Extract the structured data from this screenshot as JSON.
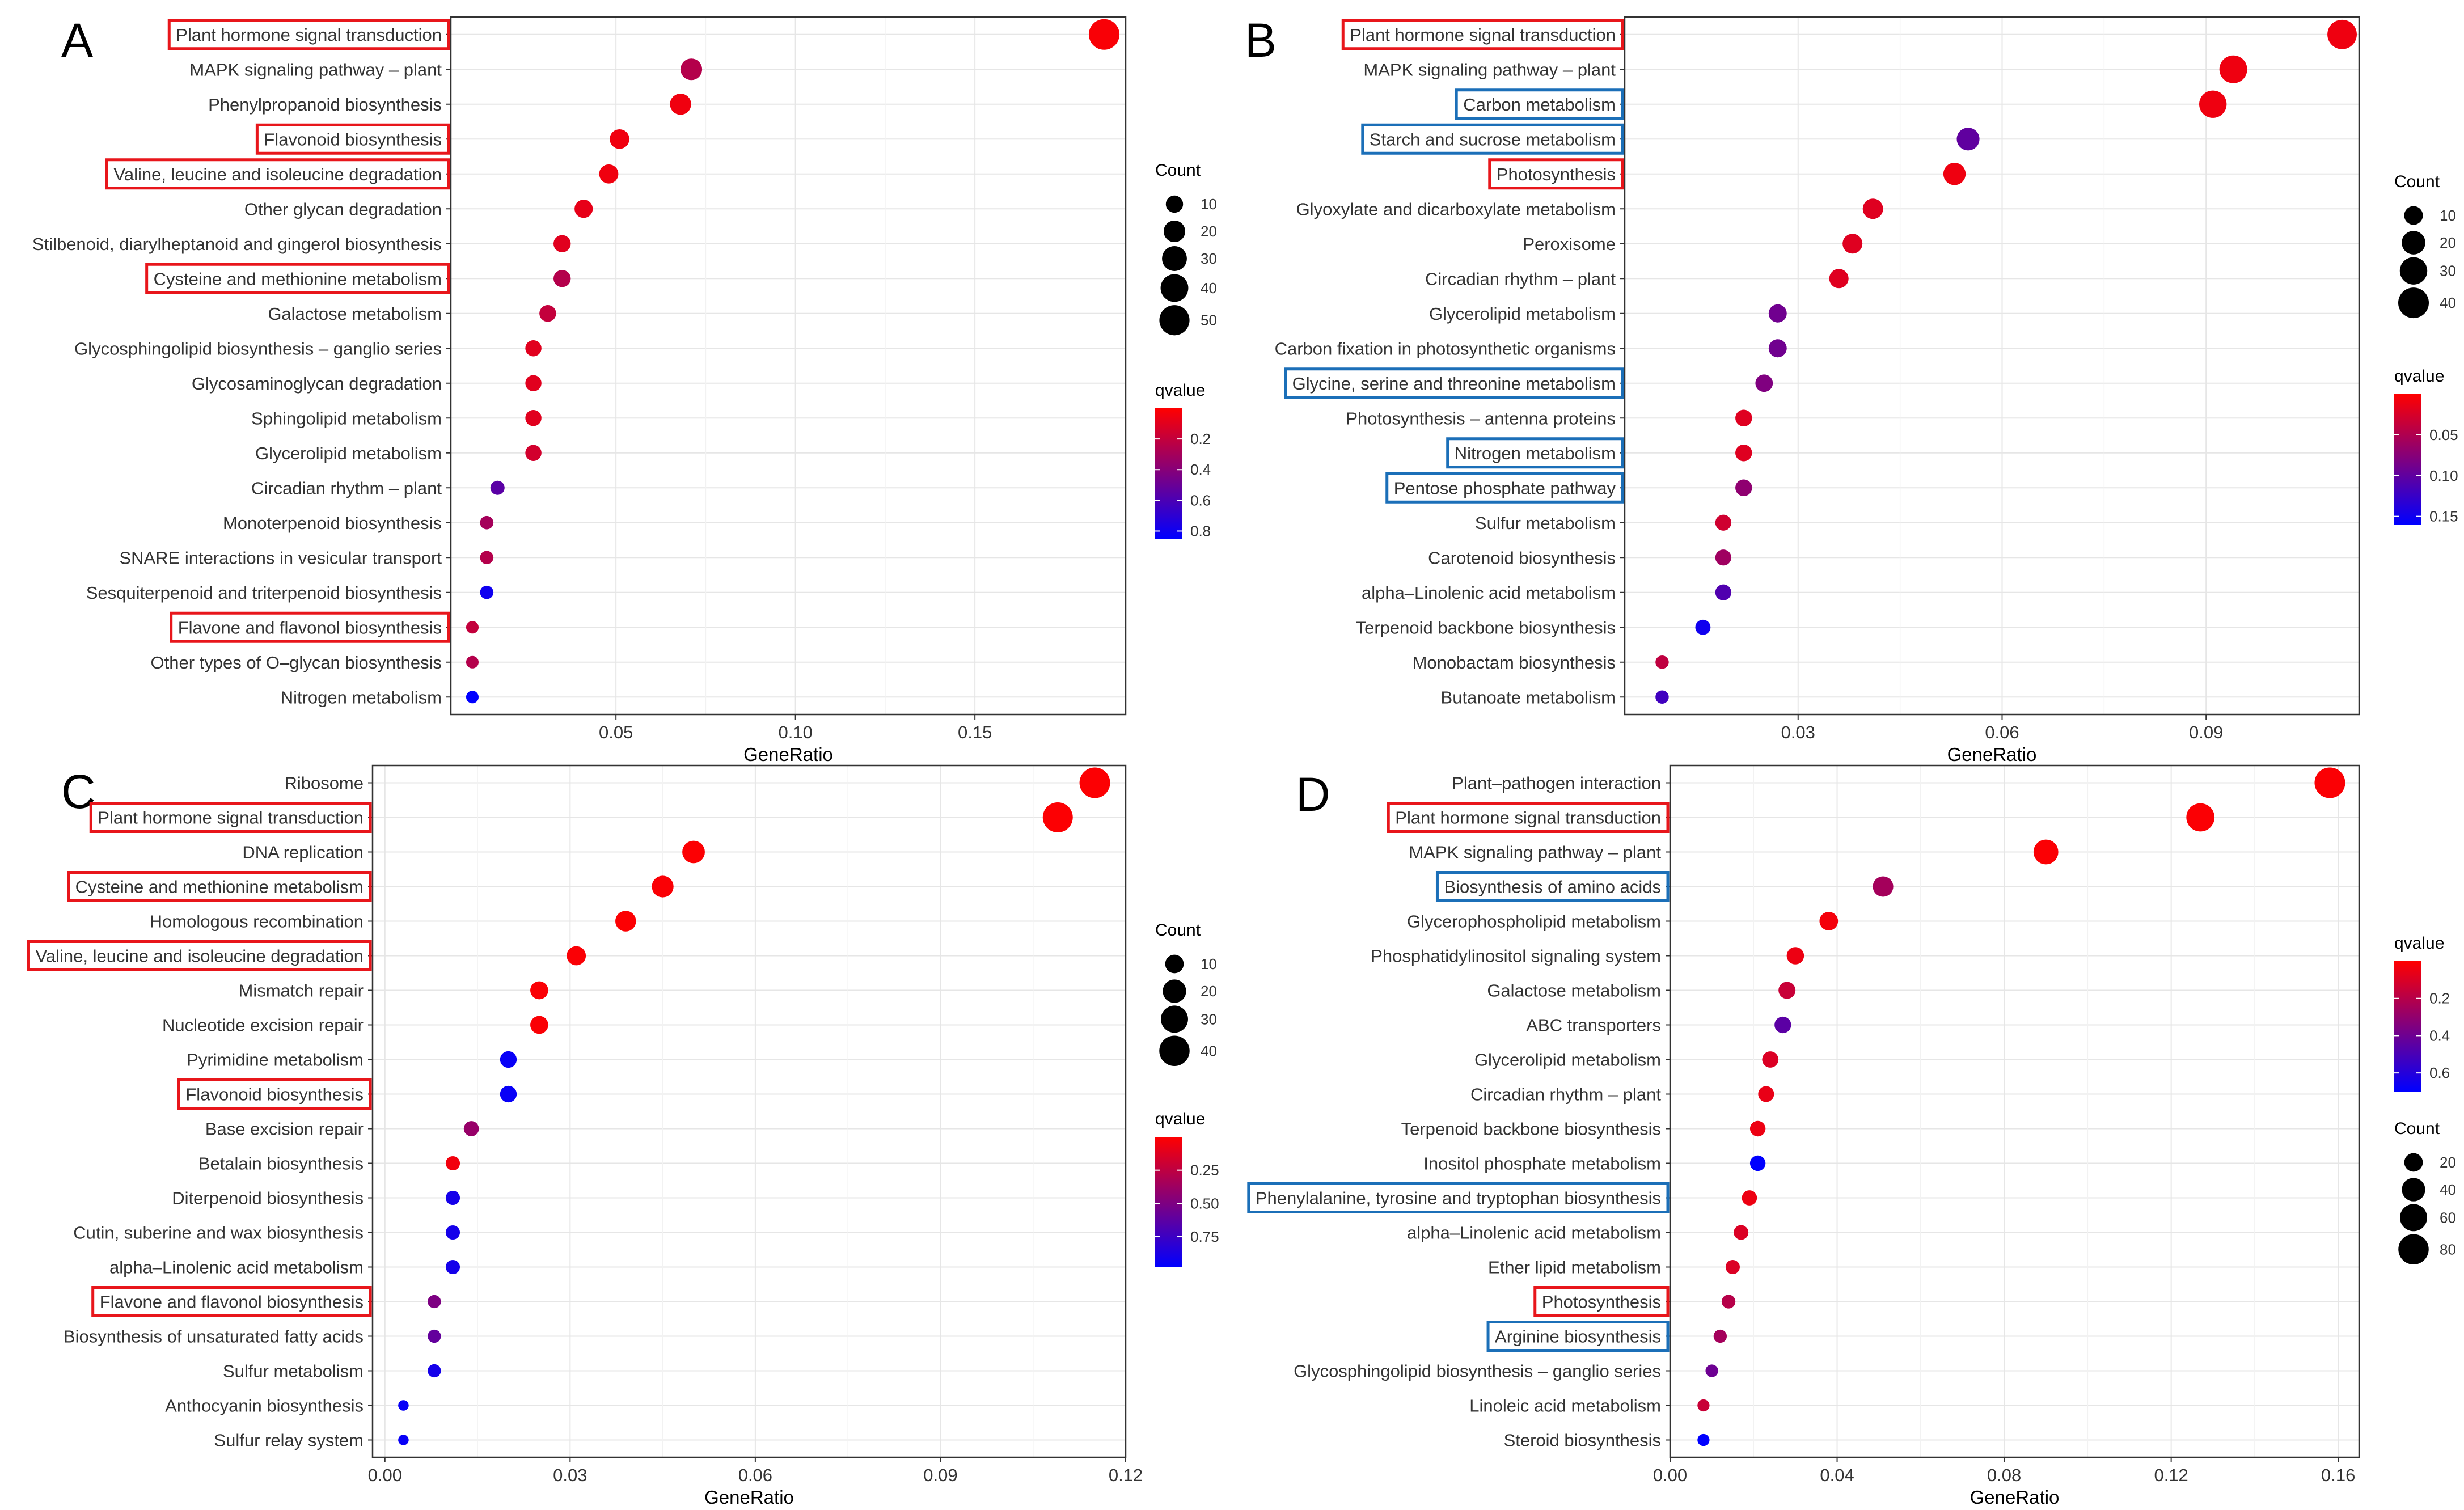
{
  "figure": {
    "x_axis_title": "GeneRatio"
  },
  "chart_data": [
    {
      "type": "scatter",
      "panel_label": "A",
      "title": "",
      "xlabel": "GeneRatio",
      "ylabel": "",
      "xlim": [
        0.004,
        0.192
      ],
      "xticks": [
        0.05,
        0.1,
        0.15
      ],
      "xtick_labels": [
        "0.05",
        "0.10",
        "0.15"
      ],
      "categories": [
        "Plant hormone signal transduction",
        "MAPK signaling pathway – plant",
        "Phenylpropanoid biosynthesis",
        "Flavonoid biosynthesis",
        "Valine, leucine and isoleucine degradation",
        "Other glycan degradation",
        "Stilbenoid, diarylheptanoid and gingerol biosynthesis",
        "Cysteine and methionine metabolism",
        "Galactose metabolism",
        "Glycosphingolipid biosynthesis – ganglio series",
        "Glycosaminoglycan degradation",
        "Sphingolipid metabolism",
        "Glycerolipid metabolism",
        "Circadian rhythm – plant",
        "Monoterpenoid biosynthesis",
        "SNARE interactions in vesicular transport",
        "Sesquiterpenoid and triterpenoid biosynthesis",
        "Flavone and flavonol biosynthesis",
        "Other types of O–glycan biosynthesis",
        "Nitrogen metabolism"
      ],
      "gene_ratio": [
        0.186,
        0.071,
        0.068,
        0.051,
        0.048,
        0.041,
        0.035,
        0.035,
        0.031,
        0.027,
        0.027,
        0.027,
        0.027,
        0.017,
        0.014,
        0.014,
        0.014,
        0.01,
        0.01,
        0.01
      ],
      "count": [
        52,
        20,
        19,
        15,
        14,
        12,
        10,
        10,
        9,
        8,
        8,
        8,
        8,
        5,
        4,
        4,
        4,
        3,
        3,
        3
      ],
      "qvalue": [
        0.02,
        0.25,
        0.05,
        0.05,
        0.05,
        0.08,
        0.1,
        0.25,
        0.2,
        0.1,
        0.1,
        0.1,
        0.15,
        0.55,
        0.3,
        0.25,
        0.8,
        0.2,
        0.25,
        0.85
      ],
      "highlight": [
        "red",
        "",
        "",
        "red",
        "red",
        "",
        "",
        "red",
        "",
        "",
        "",
        "",
        "",
        "",
        "",
        "",
        "",
        "red",
        "",
        ""
      ],
      "size_legend": {
        "title": "Count",
        "values": [
          10,
          20,
          30,
          40,
          50
        ],
        "labels": [
          "10",
          "20",
          "30",
          "40",
          "50"
        ]
      },
      "color_legend": {
        "title": "qvalue",
        "range": [
          0.0,
          0.85
        ],
        "ticks": [
          0.2,
          0.4,
          0.6,
          0.8
        ],
        "labels": [
          "0.2",
          "0.4",
          "0.6",
          "0.8"
        ],
        "low_color": "#FF0000",
        "high_color": "#0000FF"
      },
      "legend_placement": "right"
    },
    {
      "type": "scatter",
      "panel_label": "B",
      "title": "",
      "xlabel": "GeneRatio",
      "ylabel": "",
      "xlim": [
        0.0045,
        0.1125
      ],
      "xticks": [
        0.03,
        0.06,
        0.09
      ],
      "xtick_labels": [
        "0.03",
        "0.06",
        "0.09"
      ],
      "categories": [
        "Plant hormone signal transduction",
        "MAPK signaling pathway – plant",
        "Carbon metabolism",
        "Starch and sucrose metabolism",
        "Photosynthesis",
        "Glyoxylate and dicarboxylate metabolism",
        "Peroxisome",
        "Circadian rhythm – plant",
        "Glycerolipid metabolism",
        "Carbon fixation in photosynthetic organisms",
        "Glycine, serine and threonine metabolism",
        "Photosynthesis – antenna proteins",
        "Nitrogen metabolism",
        "Pentose phosphate pathway",
        "Sulfur metabolism",
        "Carotenoid biosynthesis",
        "alpha–Linolenic acid metabolism",
        "Terpenoid backbone biosynthesis",
        "Monobactam biosynthesis",
        "Butanoate metabolism"
      ],
      "gene_ratio": [
        0.11,
        0.094,
        0.091,
        0.055,
        0.053,
        0.041,
        0.038,
        0.036,
        0.027,
        0.027,
        0.025,
        0.022,
        0.022,
        0.022,
        0.019,
        0.019,
        0.019,
        0.016,
        0.01,
        0.01
      ],
      "count": [
        36,
        31,
        30,
        18,
        17,
        13,
        12,
        11,
        9,
        9,
        8,
        7,
        7,
        7,
        6,
        6,
        6,
        5,
        3,
        3
      ],
      "qvalue": [
        0.01,
        0.01,
        0.01,
        0.1,
        0.01,
        0.02,
        0.02,
        0.02,
        0.09,
        0.09,
        0.08,
        0.02,
        0.02,
        0.07,
        0.03,
        0.06,
        0.11,
        0.15,
        0.04,
        0.12
      ],
      "highlight": [
        "red",
        "",
        "blue",
        "blue",
        "red",
        "",
        "",
        "",
        "",
        "",
        "blue",
        "",
        "blue",
        "blue",
        "",
        "",
        "",
        "",
        "",
        ""
      ],
      "size_legend": {
        "title": "Count",
        "values": [
          10,
          20,
          30,
          40
        ],
        "labels": [
          "10",
          "20",
          "30",
          "40"
        ]
      },
      "color_legend": {
        "title": "qvalue",
        "range": [
          0.0,
          0.16
        ],
        "ticks": [
          0.05,
          0.1,
          0.15
        ],
        "labels": [
          "0.05",
          "0.10",
          "0.15"
        ],
        "low_color": "#FF0000",
        "high_color": "#0000FF"
      },
      "legend_placement": "right"
    },
    {
      "type": "scatter",
      "panel_label": "C",
      "title": "",
      "xlabel": "GeneRatio",
      "ylabel": "",
      "xlim": [
        -0.002,
        0.12
      ],
      "xticks": [
        0.0,
        0.03,
        0.06,
        0.09,
        0.12
      ],
      "xtick_labels": [
        "0.00",
        "0.03",
        "0.06",
        "0.09",
        "0.12"
      ],
      "categories": [
        "Ribosome",
        "Plant hormone signal transduction",
        "DNA replication",
        "Cysteine and methionine metabolism",
        "Homologous recombination",
        "Valine, leucine and isoleucine degradation",
        "Mismatch repair",
        "Nucleotide excision repair",
        "Pyrimidine metabolism",
        "Flavonoid biosynthesis",
        "Base excision repair",
        "Betalain biosynthesis",
        "Diterpenoid biosynthesis",
        "Cutin, suberine and wax biosynthesis",
        "alpha–Linolenic acid metabolism",
        "Flavone and flavonol biosynthesis",
        "Biosynthesis of unsaturated fatty acids",
        "Sulfur metabolism",
        "Anthocyanin biosynthesis",
        "Sulfur relay system"
      ],
      "gene_ratio": [
        0.115,
        0.109,
        0.05,
        0.045,
        0.039,
        0.031,
        0.025,
        0.025,
        0.02,
        0.02,
        0.014,
        0.011,
        0.011,
        0.011,
        0.011,
        0.008,
        0.008,
        0.008,
        0.003,
        0.003
      ],
      "count": [
        41,
        39,
        18,
        16,
        14,
        11,
        9,
        9,
        7,
        7,
        5,
        4,
        4,
        4,
        4,
        3,
        3,
        3,
        1,
        1
      ],
      "qvalue": [
        0.01,
        0.01,
        0.01,
        0.02,
        0.01,
        0.02,
        0.02,
        0.02,
        0.95,
        0.95,
        0.4,
        0.05,
        0.9,
        0.9,
        0.9,
        0.5,
        0.6,
        0.9,
        0.95,
        0.95
      ],
      "highlight": [
        "",
        "red",
        "",
        "red",
        "",
        "red",
        "",
        "",
        "",
        "red",
        "",
        "",
        "",
        "",
        "",
        "red",
        "",
        "",
        "",
        ""
      ],
      "size_legend": {
        "title": "Count",
        "values": [
          10,
          20,
          30,
          40
        ],
        "labels": [
          "10",
          "20",
          "30",
          "40"
        ]
      },
      "color_legend": {
        "title": "qvalue",
        "range": [
          0.0,
          0.98
        ],
        "ticks": [
          0.25,
          0.5,
          0.75
        ],
        "labels": [
          "0.25",
          "0.50",
          "0.75"
        ],
        "low_color": "#FF0000",
        "high_color": "#0000FF"
      },
      "legend_placement": "right"
    },
    {
      "type": "scatter",
      "panel_label": "D",
      "title": "",
      "xlabel": "GeneRatio",
      "ylabel": "",
      "xlim": [
        0.0,
        0.165
      ],
      "xticks": [
        0.0,
        0.04,
        0.08,
        0.12,
        0.16
      ],
      "xtick_labels": [
        "0.00",
        "0.04",
        "0.08",
        "0.12",
        "0.16"
      ],
      "categories": [
        "Plant–pathogen interaction",
        "Plant hormone signal transduction",
        "MAPK signaling pathway – plant",
        "Biosynthesis of amino acids",
        "Glycerophospholipid metabolism",
        "Phosphatidylinositol signaling system",
        "Galactose metabolism",
        "ABC transporters",
        "Glycerolipid metabolism",
        "Circadian rhythm – plant",
        "Terpenoid backbone biosynthesis",
        "Inositol phosphate metabolism",
        "Phenylalanine, tyrosine and tryptophan biosynthesis",
        "alpha–Linolenic acid metabolism",
        "Ether lipid metabolism",
        "Photosynthesis",
        "Arginine biosynthesis",
        "Glycosphingolipid biosynthesis – ganglio series",
        "Linoleic acid metabolism",
        "Steroid biosynthesis"
      ],
      "gene_ratio": [
        0.158,
        0.127,
        0.09,
        0.051,
        0.038,
        0.03,
        0.028,
        0.027,
        0.024,
        0.023,
        0.021,
        0.021,
        0.019,
        0.017,
        0.015,
        0.014,
        0.012,
        0.01,
        0.008,
        0.008
      ],
      "count": [
        82,
        66,
        47,
        27,
        20,
        16,
        15,
        14,
        13,
        12,
        11,
        11,
        10,
        9,
        8,
        7,
        6,
        5,
        4,
        4
      ],
      "qvalue": [
        0.01,
        0.01,
        0.01,
        0.25,
        0.03,
        0.05,
        0.15,
        0.45,
        0.1,
        0.06,
        0.05,
        0.75,
        0.05,
        0.1,
        0.1,
        0.2,
        0.25,
        0.4,
        0.15,
        0.75
      ],
      "highlight": [
        "",
        "red",
        "",
        "blue",
        "",
        "",
        "",
        "",
        "",
        "",
        "",
        "",
        "blue",
        "",
        "",
        "red",
        "blue",
        "",
        "",
        ""
      ],
      "size_legend": {
        "title": "Count",
        "values": [
          20,
          40,
          60,
          80
        ],
        "labels": [
          "20",
          "40",
          "60",
          "80"
        ]
      },
      "color_legend": {
        "title": "qvalue",
        "range": [
          0.0,
          0.7
        ],
        "ticks": [
          0.2,
          0.4,
          0.6
        ],
        "labels": [
          "0.2",
          "0.4",
          "0.6"
        ],
        "low_color": "#FF0000",
        "high_color": "#0000FF"
      },
      "legend_placement": "right (colour bar above size legend)"
    }
  ]
}
